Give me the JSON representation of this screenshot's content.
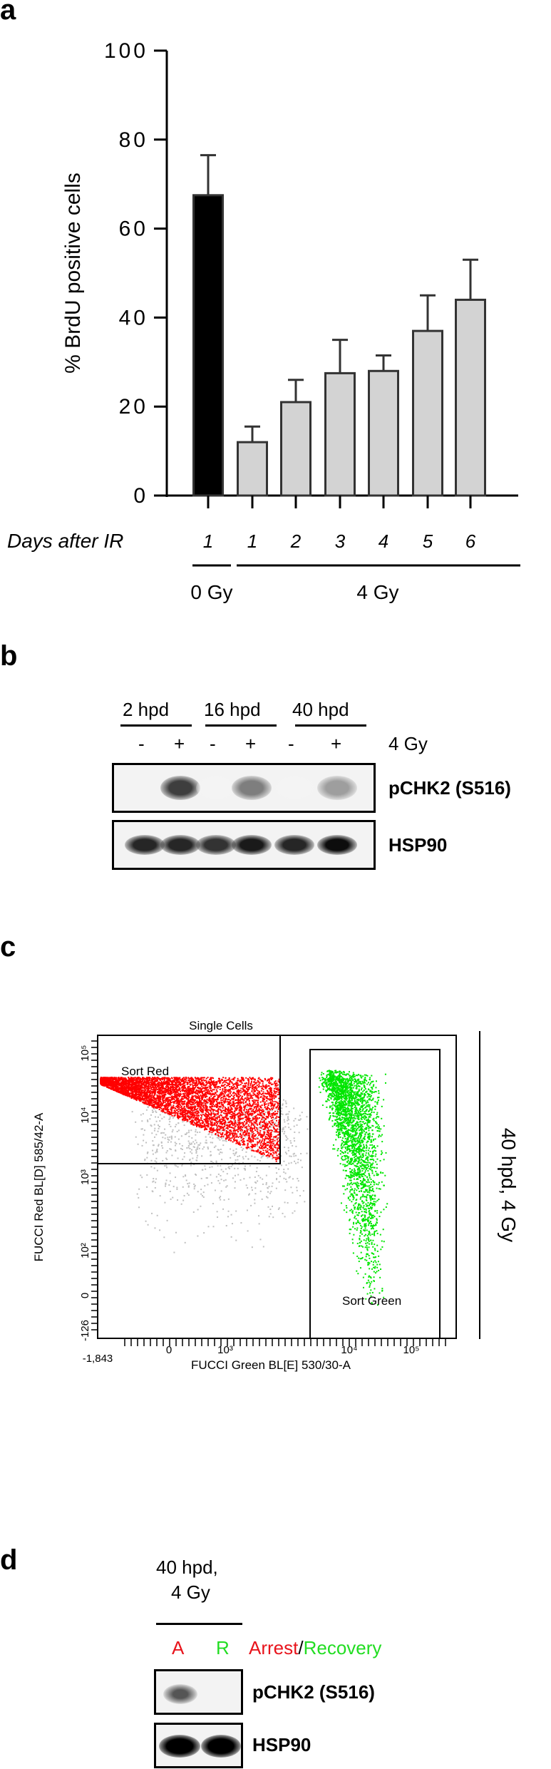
{
  "panels": {
    "a": "a",
    "b": "b",
    "c": "c",
    "d": "d"
  },
  "chart_data": {
    "type": "bar",
    "ylabel": "% BrdU positive cells",
    "xlabel": "Days after IR",
    "ylim": [
      0,
      100
    ],
    "yticks": [
      "0",
      "20",
      "40",
      "60",
      "80",
      "100"
    ],
    "categories": [
      "1",
      "1",
      "2",
      "3",
      "4",
      "5",
      "6"
    ],
    "values": [
      67.5,
      12,
      21,
      27.5,
      28,
      37,
      44
    ],
    "error_upper": [
      76.5,
      15.5,
      26,
      35,
      31.5,
      45,
      53
    ],
    "colors": [
      "#000000",
      "#d3d3d3",
      "#d3d3d3",
      "#d3d3d3",
      "#d3d3d3",
      "#d3d3d3",
      "#d3d3d3"
    ],
    "groups": [
      {
        "label": "0 Gy",
        "bars": [
          0
        ]
      },
      {
        "label": "4 Gy",
        "bars": [
          1,
          2,
          3,
          4,
          5,
          6
        ]
      }
    ],
    "grid": false
  },
  "blot_b": {
    "timepoints": [
      "2 hpd",
      "16 hpd",
      "40 hpd"
    ],
    "treatment": [
      "-",
      "+",
      "-",
      "+",
      "-",
      "+"
    ],
    "treatment_label": "4 Gy",
    "rows": [
      "pCHK2 (S516)",
      "HSP90"
    ],
    "pchk2_intensity": [
      0,
      0.9,
      0.05,
      0.6,
      0.05,
      0.45
    ],
    "hsp90_intensity": [
      0.85,
      0.85,
      0.8,
      0.9,
      0.85,
      0.95
    ]
  },
  "flow_c": {
    "gate_title": "Single Cells",
    "gate_red": "Sort Red",
    "gate_green": "Sort Green",
    "ylabel": "FUCCI Red BL[D] 585/42-A",
    "xlabel": "FUCCI Green BL[E] 530/30-A",
    "yticks": [
      "10⁵",
      "10⁴",
      "10³",
      "10²",
      "0",
      "-126"
    ],
    "xticks": [
      "-1,843",
      "0",
      "10³",
      "10⁴",
      "10⁵"
    ],
    "side_label": "40 hpd, 4 Gy",
    "colors": {
      "red": "#ff0000",
      "green": "#00e600",
      "gray": "#c0c0c0"
    }
  },
  "blot_d": {
    "condition_line1": "40 hpd,",
    "condition_line2": "4 Gy",
    "lanes": [
      "A",
      "R"
    ],
    "legend_arrest": "Arrest",
    "legend_sep": "/",
    "legend_recovery": "Recovery",
    "rows": [
      "pCHK2 (S516)",
      "HSP90"
    ],
    "colors": {
      "arrest": "#e8141c",
      "recovery": "#22dd22"
    }
  }
}
